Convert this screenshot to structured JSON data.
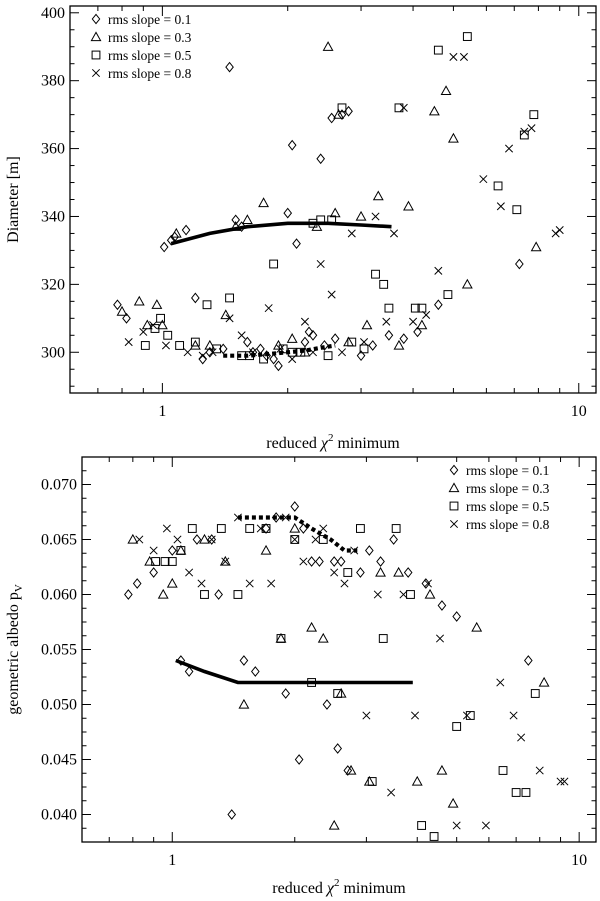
{
  "chart_data": [
    {
      "type": "scatter",
      "xlabel": "reduced χ² minimum",
      "xlabel_main": "reduced ",
      "xlabel_sym": "χ",
      "xlabel_sup": "2",
      "xlabel_tail": " minimum",
      "ylabel": "Diameter [m]",
      "xscale": "log",
      "xlim": [
        0.6,
        11
      ],
      "ylim": [
        288,
        402
      ],
      "xticks": [
        {
          "v": 1,
          "label": "1"
        },
        {
          "v": 10,
          "label": "10"
        }
      ],
      "yticks": [
        {
          "v": 300,
          "label": "300"
        },
        {
          "v": 320,
          "label": "320"
        },
        {
          "v": 340,
          "label": "340"
        },
        {
          "v": 360,
          "label": "360"
        },
        {
          "v": 380,
          "label": "380"
        },
        {
          "v": 400,
          "label": "400"
        }
      ],
      "legend": [
        "rms slope = 0.1",
        "rms slope = 0.3",
        "rms slope = 0.5",
        "rms slope = 0.8"
      ],
      "series": [
        {
          "name": "rms slope = 0.1",
          "marker": "diamond",
          "x": [
            0.78,
            0.82,
            1.01,
            1.05,
            1.07,
            1.14,
            1.2,
            1.25,
            1.3,
            1.4,
            1.45,
            1.5,
            1.55,
            1.6,
            1.65,
            1.72,
            1.78,
            1.85,
            1.9,
            2.0,
            2.05,
            2.1,
            2.2,
            2.25,
            2.3,
            2.4,
            2.45,
            2.55,
            2.6,
            2.7,
            2.8,
            3.0,
            3.2,
            3.5,
            3.8,
            4.1,
            4.6,
            7.2
          ],
          "y": [
            314,
            310,
            331,
            333,
            334,
            336,
            316,
            298,
            300,
            301,
            384,
            339,
            337,
            303,
            300,
            301,
            299,
            298,
            296,
            341,
            361,
            332,
            303,
            306,
            305,
            357,
            302,
            369,
            304,
            370,
            371,
            299,
            302,
            305,
            304,
            306,
            314,
            326
          ]
        },
        {
          "name": "rms slope = 0.3",
          "marker": "triangle",
          "x": [
            0.8,
            0.88,
            0.92,
            0.97,
            1.0,
            1.08,
            1.2,
            1.3,
            1.42,
            1.5,
            1.6,
            1.75,
            1.9,
            2.05,
            2.2,
            2.35,
            2.5,
            2.6,
            2.65,
            2.8,
            3.0,
            3.1,
            3.3,
            3.7,
            3.9,
            4.2,
            4.5,
            4.8,
            5.0,
            5.4,
            7.9
          ],
          "y": [
            312,
            315,
            308,
            314,
            308,
            335,
            302,
            302,
            311,
            337,
            339,
            344,
            302,
            304,
            300,
            337,
            390,
            341,
            370,
            303,
            340,
            308,
            346,
            302,
            343,
            308,
            371,
            377,
            363,
            320,
            331
          ]
        },
        {
          "name": "rms slope = 0.5",
          "marker": "square",
          "x": [
            0.91,
            0.96,
            0.99,
            1.03,
            1.1,
            1.2,
            1.28,
            1.35,
            1.45,
            1.55,
            1.62,
            1.75,
            1.85,
            1.95,
            2.05,
            2.15,
            2.3,
            2.4,
            2.5,
            2.55,
            2.7,
            2.85,
            3.05,
            3.25,
            3.4,
            3.5,
            3.7,
            4.05,
            4.2,
            4.6,
            4.85,
            5.4,
            6.4,
            7.1,
            7.4,
            7.8
          ],
          "y": [
            302,
            307,
            310,
            305,
            302,
            303,
            314,
            301,
            316,
            299,
            299,
            298,
            326,
            301,
            300,
            300,
            338,
            339,
            299,
            339,
            372,
            303,
            301,
            323,
            320,
            313,
            372,
            313,
            313,
            389,
            317,
            393,
            349,
            342,
            364,
            370
          ]
        },
        {
          "name": "rms slope = 0.8",
          "marker": "cross",
          "x": [
            0.83,
            0.9,
            0.95,
            1.02,
            1.15,
            1.25,
            1.32,
            1.45,
            1.55,
            1.65,
            1.8,
            1.92,
            2.05,
            2.2,
            2.3,
            2.4,
            2.55,
            2.7,
            2.85,
            3.05,
            3.25,
            3.45,
            3.6,
            3.8,
            4.0,
            4.3,
            4.6,
            5.0,
            5.3,
            5.9,
            6.5,
            6.8,
            7.4,
            7.7,
            8.8,
            9.0
          ],
          "y": [
            303,
            306,
            308,
            302,
            300,
            299,
            300,
            310,
            305,
            300,
            313,
            301,
            298,
            309,
            300,
            326,
            317,
            300,
            335,
            303,
            340,
            309,
            335,
            372,
            309,
            311,
            324,
            387,
            387,
            351,
            343,
            360,
            365,
            366,
            335,
            336
          ]
        }
      ],
      "fit_lines": [
        {
          "style": "solid",
          "x": [
            1.05,
            1.3,
            1.6,
            2.0,
            2.5,
            3.0,
            3.55
          ],
          "y": [
            332,
            335,
            337,
            338,
            338,
            337.5,
            337
          ]
        },
        {
          "style": "dotted",
          "x": [
            1.4,
            1.6,
            1.8,
            2.0,
            2.2,
            2.45,
            2.6
          ],
          "y": [
            299,
            299,
            299.5,
            300,
            300.5,
            301.5,
            302
          ]
        }
      ]
    },
    {
      "type": "scatter",
      "xlabel": "reduced χ² minimum",
      "xlabel_main": "reduced ",
      "xlabel_sym": "χ",
      "xlabel_sup": "2",
      "xlabel_tail": " minimum",
      "ylabel": "geometric albedo pV",
      "ylabel_main": "geometric albedo p",
      "ylabel_sub": "V",
      "xscale": "log",
      "xlim": [
        0.6,
        11
      ],
      "ylim": [
        0.0375,
        0.0725
      ],
      "xticks": [
        {
          "v": 1,
          "label": "1"
        },
        {
          "v": 10,
          "label": "10"
        }
      ],
      "yticks": [
        {
          "v": 0.04,
          "label": "0.040"
        },
        {
          "v": 0.045,
          "label": "0.045"
        },
        {
          "v": 0.05,
          "label": "0.050"
        },
        {
          "v": 0.055,
          "label": "0.055"
        },
        {
          "v": 0.06,
          "label": "0.060"
        },
        {
          "v": 0.065,
          "label": "0.065"
        },
        {
          "v": 0.07,
          "label": "0.070"
        }
      ],
      "legend": [
        "rms slope = 0.1",
        "rms slope = 0.3",
        "rms slope = 0.5",
        "rms slope = 0.8"
      ],
      "series": [
        {
          "name": "rms slope = 0.1",
          "marker": "diamond",
          "x": [
            0.78,
            0.82,
            0.9,
            1.0,
            1.05,
            1.1,
            1.15,
            1.25,
            1.3,
            1.4,
            1.5,
            1.6,
            1.7,
            1.8,
            1.9,
            2.0,
            2.05,
            2.1,
            2.2,
            2.3,
            2.4,
            2.5,
            2.55,
            2.6,
            2.7,
            2.9,
            3.05,
            3.25,
            3.5,
            3.8,
            4.2,
            4.6,
            5.0,
            7.5
          ],
          "y": [
            0.06,
            0.061,
            0.062,
            0.064,
            0.054,
            0.053,
            0.065,
            0.065,
            0.06,
            0.04,
            0.054,
            0.053,
            0.066,
            0.067,
            0.051,
            0.068,
            0.045,
            0.066,
            0.063,
            0.063,
            0.05,
            0.063,
            0.046,
            0.063,
            0.044,
            0.062,
            0.064,
            0.063,
            0.065,
            0.062,
            0.061,
            0.059,
            0.058,
            0.054
          ]
        },
        {
          "name": "rms slope = 0.3",
          "marker": "triangle",
          "x": [
            0.8,
            0.88,
            0.95,
            1.0,
            1.05,
            1.2,
            1.35,
            1.5,
            1.7,
            1.85,
            2.0,
            2.2,
            2.35,
            2.5,
            2.6,
            2.75,
            3.05,
            3.25,
            3.6,
            4.0,
            4.3,
            4.6,
            4.9,
            5.6,
            8.2
          ],
          "y": [
            0.065,
            0.063,
            0.06,
            0.061,
            0.064,
            0.065,
            0.063,
            0.05,
            0.064,
            0.056,
            0.066,
            0.057,
            0.056,
            0.039,
            0.051,
            0.044,
            0.043,
            0.062,
            0.062,
            0.043,
            0.06,
            0.044,
            0.041,
            0.057,
            0.052
          ]
        },
        {
          "name": "rms slope = 0.5",
          "marker": "square",
          "x": [
            0.91,
            0.96,
            1.0,
            1.05,
            1.12,
            1.2,
            1.32,
            1.45,
            1.55,
            1.7,
            1.85,
            2.0,
            2.2,
            2.35,
            2.55,
            2.7,
            2.9,
            3.1,
            3.3,
            3.55,
            3.85,
            4.1,
            4.4,
            5.0,
            5.4,
            6.5,
            7.0,
            7.4,
            7.8
          ],
          "y": [
            0.063,
            0.063,
            0.063,
            0.064,
            0.066,
            0.06,
            0.066,
            0.06,
            0.066,
            0.066,
            0.056,
            0.065,
            0.052,
            0.065,
            0.051,
            0.062,
            0.066,
            0.043,
            0.056,
            0.066,
            0.06,
            0.039,
            0.038,
            0.048,
            0.049,
            0.044,
            0.042,
            0.042,
            0.051
          ]
        },
        {
          "name": "rms slope = 0.8",
          "marker": "cross",
          "x": [
            0.83,
            0.9,
            0.97,
            1.03,
            1.1,
            1.18,
            1.25,
            1.35,
            1.45,
            1.55,
            1.65,
            1.75,
            1.9,
            2.0,
            2.1,
            2.25,
            2.35,
            2.5,
            2.65,
            2.8,
            3.0,
            3.2,
            3.45,
            3.7,
            3.95,
            4.25,
            4.55,
            5.0,
            5.3,
            5.9,
            6.4,
            6.9,
            7.2,
            8.0,
            9.0,
            9.2
          ],
          "y": [
            0.065,
            0.064,
            0.066,
            0.065,
            0.062,
            0.061,
            0.065,
            0.063,
            0.067,
            0.061,
            0.066,
            0.061,
            0.067,
            0.065,
            0.063,
            0.065,
            0.066,
            0.062,
            0.061,
            0.064,
            0.049,
            0.06,
            0.042,
            0.06,
            0.049,
            0.061,
            0.056,
            0.039,
            0.049,
            0.039,
            0.052,
            0.049,
            0.047,
            0.044,
            0.043,
            0.043
          ]
        }
      ],
      "fit_lines": [
        {
          "style": "solid",
          "x": [
            1.02,
            1.2,
            1.45,
            1.8,
            2.2,
            2.7,
            3.3,
            3.9
          ],
          "y": [
            0.054,
            0.053,
            0.052,
            0.052,
            0.052,
            0.052,
            0.052,
            0.052
          ]
        },
        {
          "style": "dotted",
          "x": [
            1.45,
            1.6,
            1.8,
            2.0,
            2.2,
            2.45,
            2.65,
            2.85
          ],
          "y": [
            0.067,
            0.067,
            0.067,
            0.067,
            0.066,
            0.065,
            0.064,
            0.064
          ]
        }
      ]
    }
  ]
}
